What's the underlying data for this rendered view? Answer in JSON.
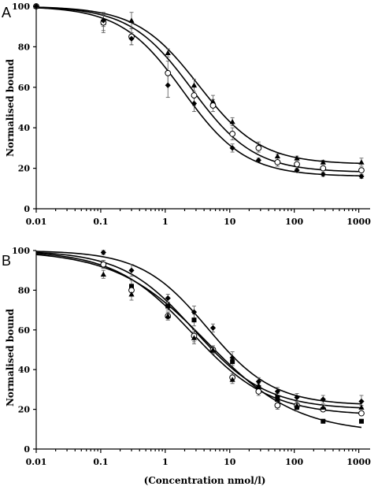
{
  "chart_data": [
    {
      "panel_label": "A",
      "type": "scatter",
      "ylabel": "Normalised bound",
      "xlabel": "",
      "x_scale": "log",
      "xlim": [
        0.01,
        1500
      ],
      "ylim": [
        0,
        100
      ],
      "x_ticks": [
        "0.01",
        "0.1",
        "1",
        "10",
        "100",
        "1000"
      ],
      "y_ticks": [
        "0",
        "20",
        "40",
        "60",
        "80",
        "100"
      ],
      "series": [
        {
          "marker": "triangle",
          "x": [
            0.01,
            0.11,
            0.3,
            1.1,
            2.8,
            5.5,
            11,
            28,
            55,
            110,
            280,
            1100
          ],
          "y": [
            100,
            92,
            93,
            77,
            61,
            53,
            43,
            31,
            26,
            25,
            23,
            23
          ],
          "err": [
            0,
            4,
            4,
            2,
            3,
            3,
            2,
            2,
            1,
            1,
            1,
            2
          ],
          "fit": {
            "bottom": 22,
            "top": 100,
            "ic50": 3.3,
            "hill": 0.9
          }
        },
        {
          "marker": "open-circle",
          "x": [
            0.01,
            0.11,
            0.3,
            1.1,
            2.8,
            5.5,
            11,
            28,
            55,
            110,
            280,
            1100
          ],
          "y": [
            100,
            92,
            85,
            67,
            56,
            51,
            37,
            30,
            23,
            22,
            20,
            19
          ],
          "err": [
            0,
            5,
            4,
            6,
            5,
            3,
            3,
            2,
            2,
            1,
            1,
            1
          ],
          "fit": {
            "bottom": 18,
            "top": 100,
            "ic50": 2.6,
            "hill": 0.9
          }
        },
        {
          "marker": "diamond",
          "x": [
            0.01,
            0.11,
            0.3,
            1.1,
            2.8,
            11,
            28,
            110,
            280,
            1100
          ],
          "y": [
            100,
            93,
            84,
            61,
            52,
            30,
            24,
            19,
            17,
            16
          ],
          "err": [
            0,
            3,
            3,
            6,
            4,
            2,
            1,
            1,
            1,
            1
          ],
          "fit": {
            "bottom": 16,
            "top": 100,
            "ic50": 1.9,
            "hill": 0.9
          }
        }
      ]
    },
    {
      "panel_label": "B",
      "type": "scatter",
      "ylabel": "Normalised bound",
      "xlabel": "(Concentration nmol/l)",
      "x_scale": "log",
      "xlim": [
        0.01,
        1500
      ],
      "ylim": [
        0,
        100
      ],
      "x_ticks": [
        "0.01",
        "0.1",
        "1",
        "10",
        "100",
        "1000"
      ],
      "y_ticks": [
        "0",
        "20",
        "40",
        "60",
        "80",
        "100"
      ],
      "series": [
        {
          "marker": "diamond",
          "x": [
            0.11,
            0.3,
            1.1,
            2.8,
            5.5,
            11,
            28,
            55,
            110,
            280,
            1100
          ],
          "y": [
            99,
            90,
            76,
            69,
            61,
            46,
            34,
            29,
            26,
            25,
            24
          ],
          "err": [
            1,
            3,
            2,
            3,
            2,
            3,
            2,
            2,
            2,
            2,
            3
          ],
          "fit": {
            "bottom": 22,
            "top": 100,
            "ic50": 4.5,
            "hill": 0.85
          }
        },
        {
          "marker": "square",
          "x": [
            0.11,
            0.3,
            1.1,
            2.8,
            5.5,
            11,
            28,
            55,
            110,
            280,
            1100
          ],
          "y": [
            93,
            82,
            72,
            65,
            50,
            44,
            31,
            26,
            21,
            14,
            14
          ],
          "err": [
            2,
            3,
            2,
            3,
            2,
            2,
            2,
            2,
            2,
            1,
            1
          ],
          "fit": {
            "bottom": 8,
            "top": 100,
            "ic50": 4.4,
            "hill": 0.62
          }
        },
        {
          "marker": "open-circle",
          "x": [
            0.11,
            0.3,
            1.1,
            2.8,
            5.5,
            11,
            28,
            55,
            110,
            280,
            1100
          ],
          "y": [
            93,
            80,
            67,
            57,
            50,
            36,
            29,
            22,
            22,
            20,
            18
          ],
          "err": [
            2,
            3,
            2,
            3,
            2,
            2,
            2,
            2,
            2,
            1,
            1
          ],
          "fit": {
            "bottom": 17,
            "top": 100,
            "ic50": 2.6,
            "hill": 0.72
          }
        },
        {
          "marker": "triangle",
          "x": [
            0.11,
            0.3,
            1.1,
            2.8,
            5.5,
            11,
            28,
            55,
            110,
            280,
            1100
          ],
          "y": [
            88,
            78,
            67,
            56,
            50,
            35,
            32,
            25,
            22,
            21,
            21
          ],
          "err": [
            2,
            3,
            2,
            3,
            2,
            2,
            2,
            2,
            2,
            1,
            1
          ],
          "fit": {
            "bottom": 20,
            "top": 100,
            "ic50": 2.8,
            "hill": 0.78
          }
        }
      ]
    }
  ]
}
